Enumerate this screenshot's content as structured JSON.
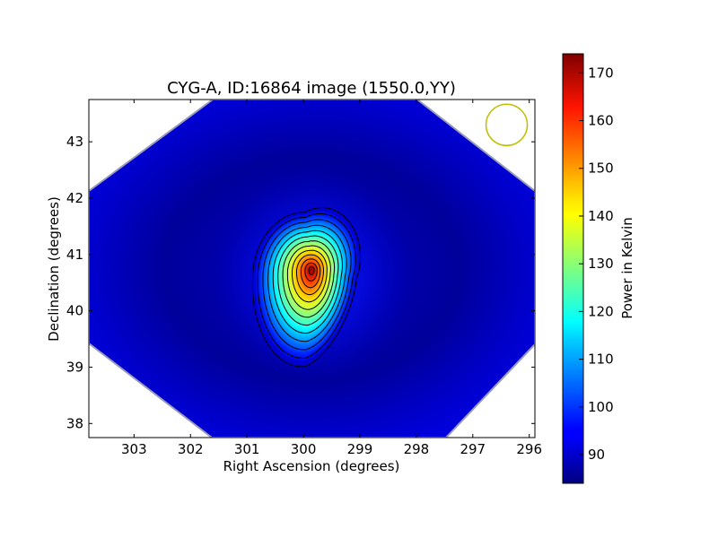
{
  "chart_data": {
    "type": "heatmap",
    "title": "CYG-A, ID:16864 image (1550.0,YY)",
    "xlabel": "Right Ascension (degrees)",
    "ylabel": "Declination (degrees)",
    "xlim": [
      303.8,
      295.9
    ],
    "ylim": [
      37.75,
      43.75
    ],
    "x_ticks": [
      303,
      302,
      301,
      300,
      299,
      298,
      297,
      296
    ],
    "x_tick_labels": [
      "303",
      "302",
      "301",
      "300",
      "299",
      "298",
      "297",
      "296"
    ],
    "y_ticks": [
      38,
      39,
      40,
      41,
      42,
      43
    ],
    "y_tick_labels": [
      "38",
      "39",
      "40",
      "41",
      "42",
      "43"
    ],
    "colorbar": {
      "label": "Power in Kelvin",
      "range": [
        84,
        174
      ],
      "ticks": [
        90,
        100,
        110,
        120,
        130,
        140,
        150,
        160,
        170
      ],
      "tick_labels": [
        "90",
        "100",
        "110",
        "120",
        "130",
        "140",
        "150",
        "160",
        "170"
      ],
      "colormap": "jet"
    },
    "background_level": 88,
    "source": {
      "ra_deg": 299.85,
      "dec_deg": 40.73,
      "peak_power": 174
    },
    "beam": {
      "ra_deg": 296.4,
      "dec_deg": 43.3,
      "color": "#bfbf00"
    },
    "contours": true,
    "contour_count": 13,
    "grid": false
  }
}
